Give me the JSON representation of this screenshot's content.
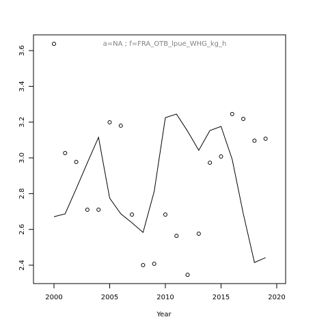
{
  "chart_data": {
    "type": "scatter",
    "title": "a=NA  ;  f=FRA_OTB_lpue_WHG_kg_h",
    "xlabel": "Year",
    "x": [
      2000,
      2001,
      2002,
      2003,
      2004,
      2005,
      2006,
      2007,
      2008,
      2009,
      2010,
      2011,
      2012,
      2013,
      2014,
      2015,
      2016,
      2017,
      2018,
      2019
    ],
    "series": [
      {
        "style": "points",
        "color": "#000000",
        "values": [
          3.638,
          3.027,
          2.977,
          2.71,
          2.71,
          3.199,
          3.18,
          2.683,
          2.4,
          2.408,
          2.683,
          2.564,
          2.346,
          2.576,
          2.973,
          3.008,
          3.245,
          3.218,
          3.096,
          3.107
        ]
      },
      {
        "style": "line",
        "color": "#000000",
        "values": [
          2.671,
          2.687,
          2.828,
          2.973,
          3.115,
          2.775,
          2.687,
          2.637,
          2.583,
          2.813,
          3.225,
          3.245,
          3.149,
          3.042,
          3.153,
          3.176,
          2.992,
          2.687,
          2.415,
          2.442
        ]
      }
    ],
    "xlim": [
      1998.16,
      2020.8
    ],
    "ylim": [
      2.297,
      3.688
    ],
    "xticks": [
      2000,
      2005,
      2010,
      2015,
      2020
    ],
    "yticks": [
      2.4,
      2.6,
      2.8,
      {
        "value": 3,
        "label": "3.0"
      },
      3.2,
      3.4,
      3.6
    ]
  }
}
